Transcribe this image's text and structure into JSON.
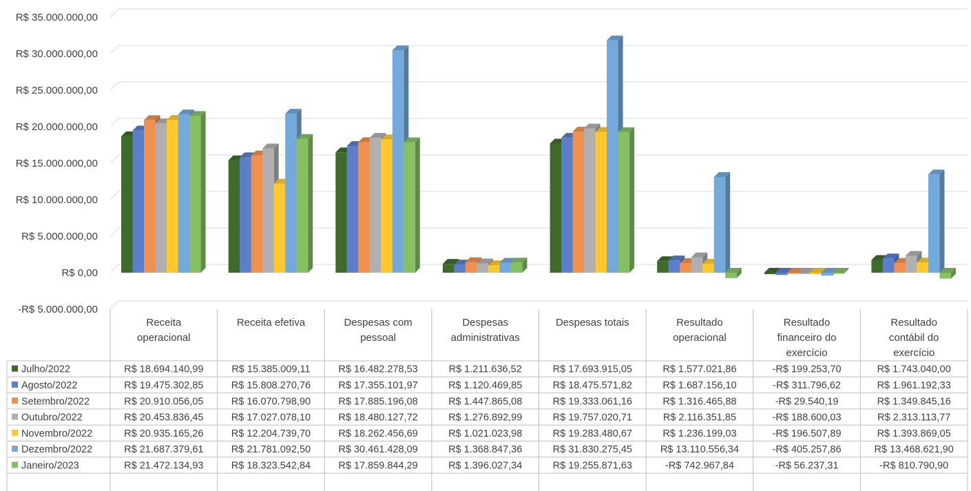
{
  "chart_data": {
    "type": "bar",
    "title": "",
    "xlabel": "",
    "ylabel": "",
    "ylim": [
      -5000000,
      35000000
    ],
    "y_ticks": [
      {
        "value": 35000000,
        "label": "R$ 35.000.000,00"
      },
      {
        "value": 30000000,
        "label": "R$ 30.000.000,00"
      },
      {
        "value": 25000000,
        "label": "R$ 25.000.000,00"
      },
      {
        "value": 20000000,
        "label": "R$ 20.000.000,00"
      },
      {
        "value": 15000000,
        "label": "R$ 15.000.000,00"
      },
      {
        "value": 10000000,
        "label": "R$ 10.000.000,00"
      },
      {
        "value": 5000000,
        "label": "R$ 5.000.000,00"
      },
      {
        "value": 0,
        "label": "R$ 0,00"
      },
      {
        "value": -5000000,
        "label": "-R$ 5.000.000,00"
      }
    ],
    "grid": true,
    "legend_position": "bottom-left (data table)",
    "categories": [
      [
        "Receita",
        "operacional"
      ],
      [
        "Receita efetiva"
      ],
      [
        "Despesas com",
        "pessoal"
      ],
      [
        "Despesas",
        "administrativas"
      ],
      [
        "Despesas totais"
      ],
      [
        "Resultado",
        "operacional"
      ],
      [
        "Resultado",
        "financeiro do",
        "exercício"
      ],
      [
        "Resultado",
        "contábil do",
        "exercício"
      ]
    ],
    "series": [
      {
        "name": "Julho/2022",
        "color": "#3e6b2a",
        "values": [
          18694140.99,
          15385009.11,
          16482278.53,
          1211636.52,
          17693915.05,
          1577021.86,
          -199253.7,
          1743040.0
        ],
        "labels": [
          "R$ 18.694.140,99",
          "R$ 15.385.009,11",
          "R$ 16.482.278,53",
          "R$ 1.211.636,52",
          "R$ 17.693.915,05",
          "R$ 1.577.021,86",
          "-R$ 199.253,70",
          "R$ 1.743.040,00"
        ]
      },
      {
        "name": "Agosto/2022",
        "color": "#5b7fcb",
        "values": [
          19475302.85,
          15808270.76,
          17355101.97,
          1120469.85,
          18475571.82,
          1687156.1,
          -311796.62,
          1961192.33
        ],
        "labels": [
          "R$ 19.475.302,85",
          "R$ 15.808.270,76",
          "R$ 17.355.101,97",
          "R$ 1.120.469,85",
          "R$ 18.475.571,82",
          "R$ 1.687.156,10",
          "-R$ 311.796,62",
          "R$ 1.961.192,33"
        ]
      },
      {
        "name": "Setembro/2022",
        "color": "#f0914f",
        "values": [
          20910056.05,
          16070798.9,
          17885196.08,
          1447865.08,
          19333061.16,
          1316465.88,
          -29540.19,
          1349845.16
        ],
        "labels": [
          "R$ 20.910.056,05",
          "R$ 16.070.798,90",
          "R$ 17.885.196,08",
          "R$ 1.447.865,08",
          "R$ 19.333.061,16",
          "R$ 1.316.465,88",
          "-R$ 29.540,19",
          "R$ 1.349.845,16"
        ]
      },
      {
        "name": "Outubro/2022",
        "color": "#b0b0b0",
        "values": [
          20453836.45,
          17027078.1,
          18480127.72,
          1276892.99,
          19757020.71,
          2116351.85,
          -188600.03,
          2313113.77
        ],
        "labels": [
          "R$ 20.453.836,45",
          "R$ 17.027.078,10",
          "R$ 18.480.127,72",
          "R$ 1.276.892,99",
          "R$ 19.757.020,71",
          "R$ 2.116.351,85",
          "-R$ 188.600,03",
          "R$ 2.313.113,77"
        ]
      },
      {
        "name": "Novembro/2022",
        "color": "#ffc82c",
        "values": [
          20935165.26,
          12204739.7,
          18262456.69,
          1021023.98,
          19283480.67,
          1236199.03,
          -196507.89,
          1393869.05
        ],
        "labels": [
          "R$ 20.935.165,26",
          "R$ 12.204.739,70",
          "R$ 18.262.456,69",
          "R$ 1.021.023,98",
          "R$ 19.283.480,67",
          "R$ 1.236.199,03",
          "-R$ 196.507,89",
          "R$ 1.393.869,05"
        ]
      },
      {
        "name": "Dezembro/2022",
        "color": "#74a9dc",
        "values": [
          21687379.61,
          21781092.5,
          30461428.09,
          1368847.36,
          31830275.45,
          13110556.34,
          -405257.86,
          13468621.9
        ],
        "labels": [
          "R$ 21.687.379,61",
          "R$ 21.781.092,50",
          "R$ 30.461.428,09",
          "R$ 1.368.847,36",
          "R$ 31.830.275,45",
          "R$ 13.110.556,34",
          "-R$ 405.257,86",
          "R$ 13.468.621,90"
        ]
      },
      {
        "name": "Janeiro/2023",
        "color": "#86c063",
        "values": [
          21472134.93,
          18323542.84,
          17859844.29,
          1396027.34,
          19255871.63,
          -742967.84,
          -56237.31,
          -810790.9
        ],
        "labels": [
          "R$ 21.472.134,93",
          "R$ 18.323.542,84",
          "R$ 17.859.844,29",
          "R$ 1.396.027,34",
          "R$ 19.255.871,63",
          "-R$ 742.967,84",
          "-R$ 56.237,31",
          "-R$ 810.790,90"
        ]
      }
    ]
  }
}
